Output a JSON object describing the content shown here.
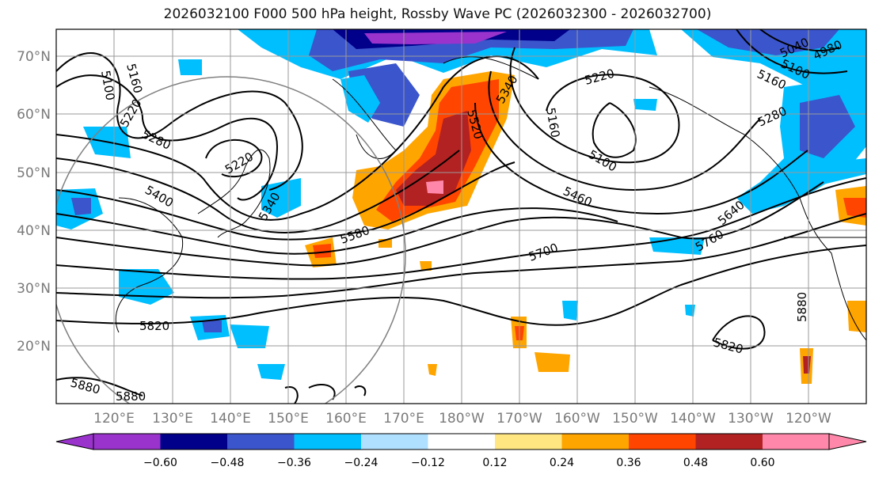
{
  "title": "2026032100 F000 500 hPa height, Rossby Wave PC (2026032300 - 2026032700)",
  "latitude_labels": [
    "70°N",
    "60°N",
    "50°N",
    "40°N",
    "30°N",
    "20°N"
  ],
  "longitude_labels": [
    "120°E",
    "130°E",
    "140°E",
    "150°E",
    "160°E",
    "170°E",
    "180°W",
    "170°W",
    "160°W",
    "150°W",
    "140°W",
    "130°W",
    "120°W"
  ],
  "contour_labels": [
    "5160",
    "5100",
    "5220",
    "5280",
    "5400",
    "5220",
    "5340",
    "5580",
    "5700",
    "5820",
    "5880",
    "5880",
    "5340",
    "5520",
    "5220",
    "5160",
    "5040",
    "4980",
    "5100",
    "5160",
    "5280",
    "5100",
    "5460",
    "5640",
    "5760",
    "5820",
    "5880"
  ],
  "colorbar": {
    "ticks": [
      "−0.60",
      "−0.48",
      "−0.36",
      "−0.24",
      "−0.12",
      "0.12",
      "0.24",
      "0.36",
      "0.48",
      "0.60"
    ],
    "colors": [
      "#9933cc",
      "#00008b",
      "#3b55cc",
      "#00bfff",
      "#b0e0ff",
      "#ffffff",
      "#ffe680",
      "#ffa500",
      "#ff4500",
      "#b22222",
      "#ff88aa"
    ]
  }
}
